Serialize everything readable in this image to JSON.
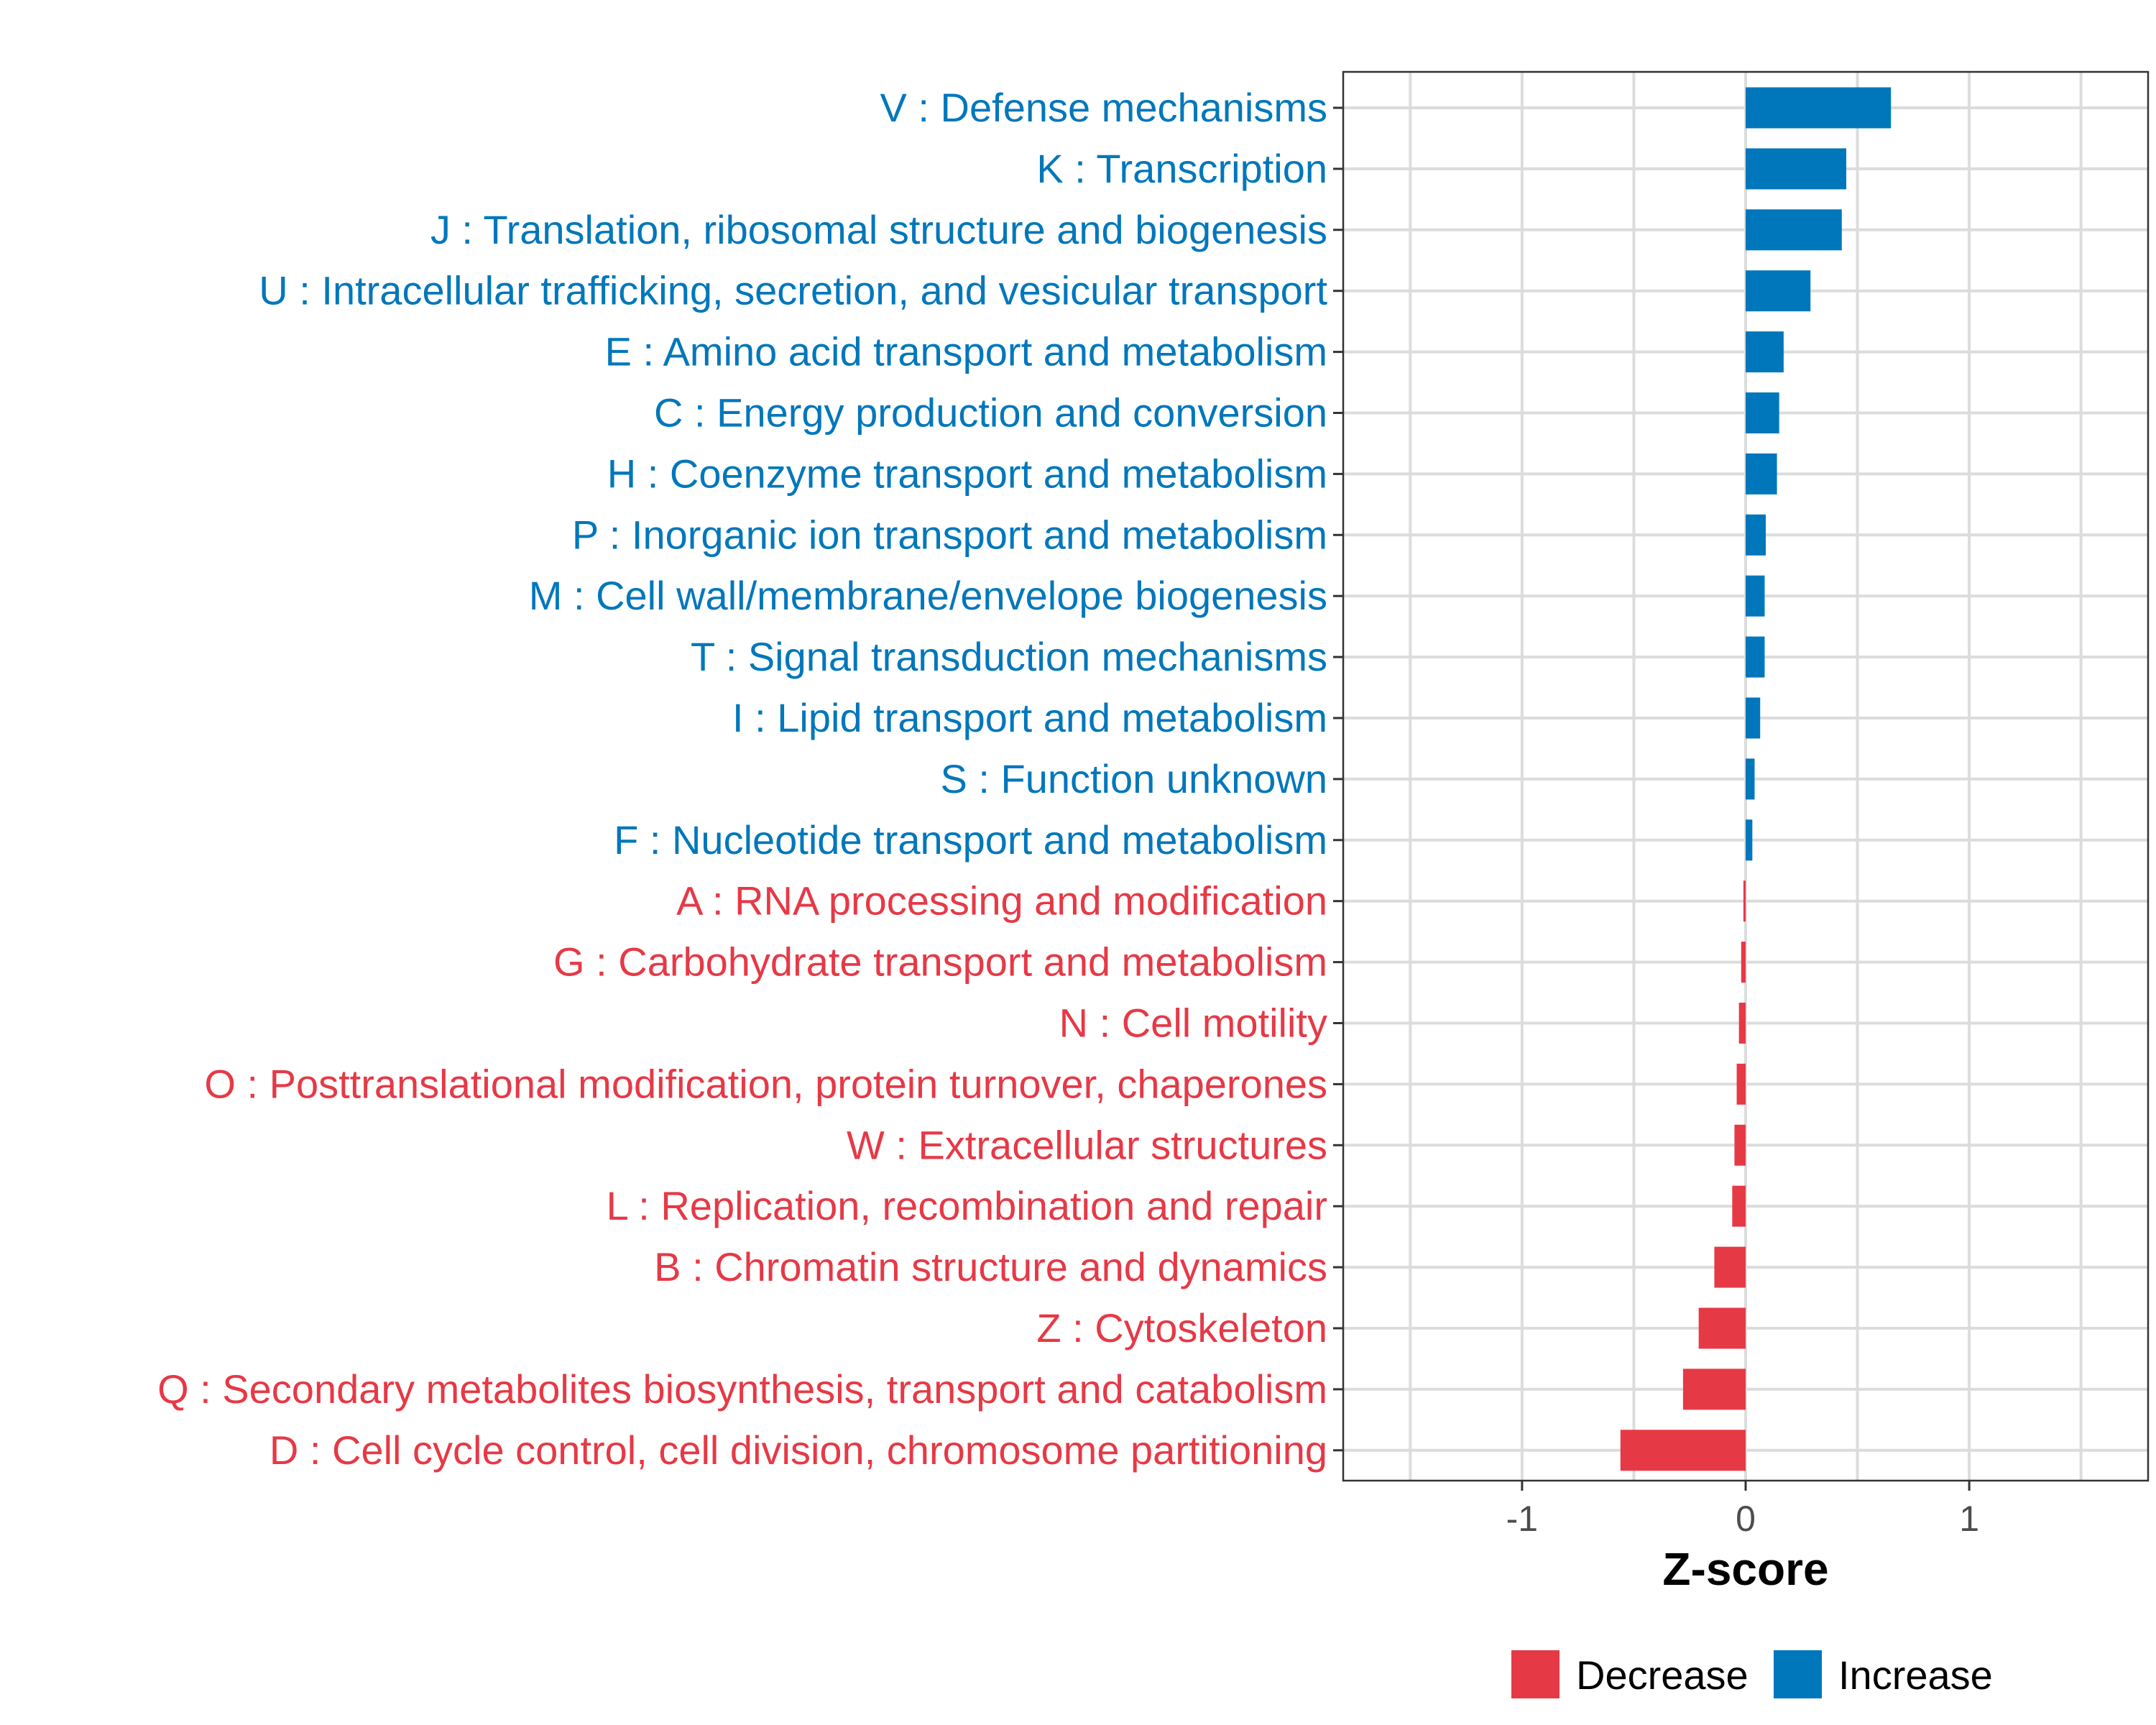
{
  "chart_data": {
    "type": "bar",
    "orientation": "horizontal",
    "title": "",
    "xlabel": "Z-score",
    "ylabel": "",
    "xlim": [
      -1.8,
      1.8
    ],
    "xticks": [
      -1,
      0,
      1
    ],
    "grid": true,
    "colors": {
      "Decrease": "#E63946",
      "Increase": "#0077BB"
    },
    "legend": {
      "position": "bottom",
      "items": [
        {
          "label": "Decrease",
          "color": "#E63946"
        },
        {
          "label": "Increase",
          "color": "#0077BB"
        }
      ]
    },
    "categories": [
      "V : Defense mechanisms",
      "K : Transcription",
      "J : Translation, ribosomal structure and biogenesis",
      "U : Intracellular trafficking, secretion, and vesicular transport",
      "E : Amino acid transport and metabolism",
      "C : Energy production and conversion",
      "H : Coenzyme transport and metabolism",
      "P : Inorganic ion transport and metabolism",
      "M : Cell wall/membrane/envelope biogenesis",
      "T : Signal transduction mechanisms",
      "I : Lipid transport and metabolism",
      "S : Function unknown",
      "F : Nucleotide transport and metabolism",
      "A : RNA processing and modification",
      "G : Carbohydrate transport and metabolism",
      "N : Cell motility",
      "O : Posttranslational modification, protein turnover, chaperones",
      "W : Extracellular structures",
      "L : Replication, recombination and repair",
      "B : Chromatin structure and dynamics",
      "Z : Cytoskeleton",
      "Q : Secondary metabolites biosynthesis, transport and catabolism",
      "D : Cell cycle control, cell division, chromosome partitioning"
    ],
    "values": [
      0.65,
      0.45,
      0.43,
      0.29,
      0.17,
      0.15,
      0.14,
      0.09,
      0.085,
      0.085,
      0.065,
      0.04,
      0.03,
      -0.01,
      -0.02,
      -0.03,
      -0.04,
      -0.05,
      -0.06,
      -0.14,
      -0.21,
      -0.28,
      -0.56
    ],
    "groups": [
      "Increase",
      "Increase",
      "Increase",
      "Increase",
      "Increase",
      "Increase",
      "Increase",
      "Increase",
      "Increase",
      "Increase",
      "Increase",
      "Increase",
      "Increase",
      "Decrease",
      "Decrease",
      "Decrease",
      "Decrease",
      "Decrease",
      "Decrease",
      "Decrease",
      "Decrease",
      "Decrease",
      "Decrease"
    ]
  }
}
